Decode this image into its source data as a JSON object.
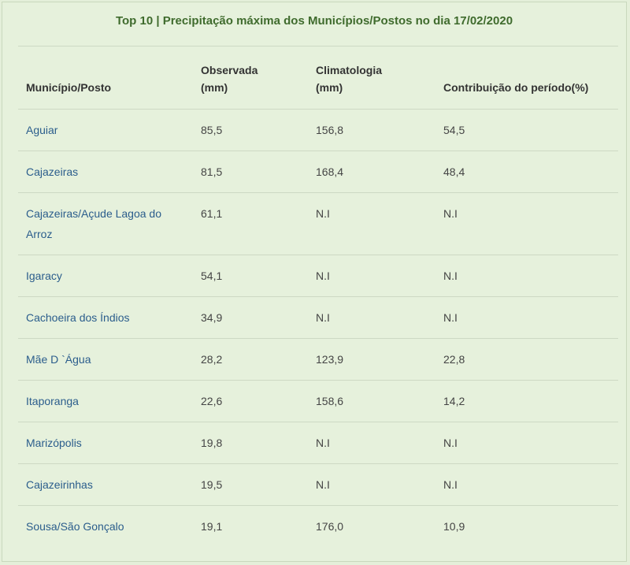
{
  "header": {
    "title": "Top 10 | Precipitação máxima dos Municípios/Postos no dia 17/02/2020"
  },
  "table": {
    "columns": [
      "Município/Posto",
      "Observada (mm)",
      "Climatologia (mm)",
      "Contribuição do período(%)"
    ],
    "rows": [
      [
        "Aguiar",
        "85,5",
        "156,8",
        "54,5"
      ],
      [
        "Cajazeiras",
        "81,5",
        "168,4",
        "48,4"
      ],
      [
        "Cajazeiras/Açude Lagoa do Arroz",
        "61,1",
        "N.I",
        "N.I"
      ],
      [
        "Igaracy",
        "54,1",
        "N.I",
        "N.I"
      ],
      [
        "Cachoeira dos Índios",
        "34,9",
        "N.I",
        "N.I"
      ],
      [
        "Mãe D `Água",
        "28,2",
        "123,9",
        "22,8"
      ],
      [
        "Itaporanga",
        "22,6",
        "158,6",
        "14,2"
      ],
      [
        "Marizópolis",
        "19,8",
        "N.I",
        "N.I"
      ],
      [
        "Cajazeirinhas",
        "19,5",
        "N.I",
        "N.I"
      ],
      [
        "Sousa/São Gonçalo",
        "19,1",
        "176,0",
        "10,9"
      ]
    ]
  }
}
